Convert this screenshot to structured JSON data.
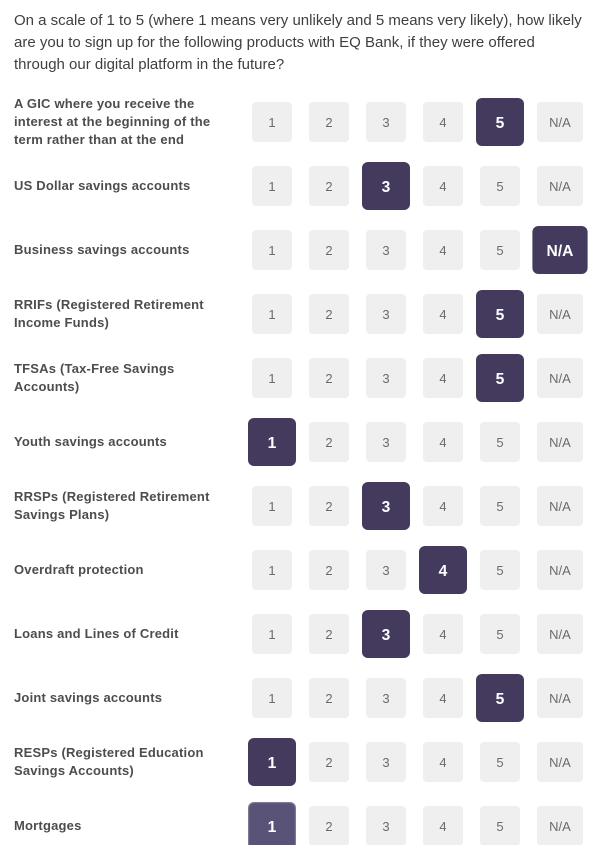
{
  "question": "On a scale of 1 to 5 (where 1 means very unlikely and 5 means very likely), how likely are you to sign up for the following products with EQ Bank, if they were offered through our digital platform in the future?",
  "scale_options": [
    "1",
    "2",
    "3",
    "4",
    "5",
    "N/A"
  ],
  "colors": {
    "question_text": "#3f3f3f",
    "label_text": "#4d4d4d",
    "unselected_bg": "#efefef",
    "unselected_text": "#6b6b6b",
    "selected_bg": "#433a5e",
    "selected_text": "#ffffff",
    "active_selected_bg": "#5a5378"
  },
  "rows": [
    {
      "label": "A GIC where you receive the interest at the beginning of the term rather than at the end",
      "selected": "5",
      "state": "default"
    },
    {
      "label": "US Dollar savings accounts",
      "selected": "3",
      "state": "default"
    },
    {
      "label": "Business savings accounts",
      "selected": "N/A",
      "state": "default"
    },
    {
      "label": "RRIFs (Registered Retirement Income Funds)",
      "selected": "5",
      "state": "default"
    },
    {
      "label": "TFSAs (Tax-Free Savings Accounts)",
      "selected": "5",
      "state": "default"
    },
    {
      "label": "Youth savings accounts",
      "selected": "1",
      "state": "default"
    },
    {
      "label": "RRSPs (Registered Retirement Savings Plans)",
      "selected": "3",
      "state": "default"
    },
    {
      "label": "Overdraft protection",
      "selected": "4",
      "state": "default"
    },
    {
      "label": "Loans and Lines of Credit",
      "selected": "3",
      "state": "default"
    },
    {
      "label": "Joint savings accounts",
      "selected": "5",
      "state": "default"
    },
    {
      "label": "RESPs (Registered Education Savings Accounts)",
      "selected": "1",
      "state": "default"
    },
    {
      "label": "Mortgages",
      "selected": "1",
      "state": "active"
    }
  ]
}
